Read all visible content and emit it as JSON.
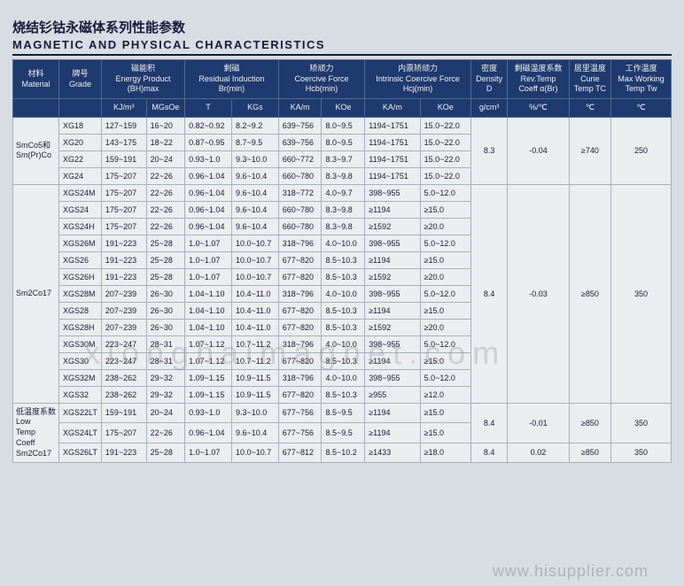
{
  "title_cn": "烧结钐钴永磁体系列性能参数",
  "title_en": "MAGNETIC AND PHYSICAL CHARACTERISTICS",
  "watermark1": "xionghaimagnet.com",
  "watermark2": "www.hisupplier.com",
  "header": {
    "h1": [
      "材料",
      "牌号",
      "磁能积",
      "剩磁",
      "矫顽力",
      "内禀矫顽力",
      "密度",
      "剩磁温度系数",
      "居里温度",
      "工作温度"
    ],
    "h1b": [
      "Material",
      "Grade",
      "Energy Product (BH)max",
      "Residual Induction Br(min)",
      "Coercive Force Hcb(min)",
      "Intrinsic Coercive Force Hcj(min)",
      "Density D",
      "Rev.Temp Coeff α(Br)",
      "Curie Temp TC",
      "Max Working Temp Tw"
    ],
    "units": [
      "KJ/m³",
      "MGsOe",
      "T",
      "KGs",
      "KA/m",
      "KOe",
      "KA/m",
      "KOe",
      "g/cm³",
      "%/℃",
      "℃",
      "℃"
    ]
  },
  "group1": {
    "material": "SmCo5和 Sm(Pr)Co",
    "density": "8.3",
    "coeff": "-0.04",
    "curie": "≥740",
    "maxtemp": "250",
    "rows": [
      [
        "XG18",
        "127~159",
        "16~20",
        "0.82~0.92",
        "8.2~9.2",
        "639~756",
        "8.0~9.5",
        "1194~1751",
        "15.0~22.0"
      ],
      [
        "XG20",
        "143~175",
        "18~22",
        "0.87~0.95",
        "8.7~9.5",
        "639~756",
        "8.0~9.5",
        "1194~1751",
        "15.0~22.0"
      ],
      [
        "XG22",
        "159~191",
        "20~24",
        "0.93~1.0",
        "9.3~10.0",
        "660~772",
        "8.3~9.7",
        "1194~1751",
        "15.0~22.0"
      ],
      [
        "XG24",
        "175~207",
        "22~26",
        "0.96~1.04",
        "9.6~10.4",
        "660~780",
        "8.3~9.8",
        "1194~1751",
        "15.0~22.0"
      ]
    ]
  },
  "group2": {
    "material": "Sm2Co17",
    "density": "8.4",
    "coeff": "-0.03",
    "curie": "≥850",
    "maxtemp": "350",
    "rows": [
      [
        "XGS24M",
        "175~207",
        "22~26",
        "0.96~1.04",
        "9.6~10.4",
        "318~772",
        "4.0~9.7",
        "398~955",
        "5.0~12.0"
      ],
      [
        "XGS24",
        "175~207",
        "22~26",
        "0.96~1.04",
        "9.6~10.4",
        "660~780",
        "8.3~9.8",
        "≥1194",
        "≥15.0"
      ],
      [
        "XGS24H",
        "175~207",
        "22~26",
        "0.96~1.04",
        "9.6~10.4",
        "660~780",
        "8.3~9.8",
        "≥1592",
        "≥20.0"
      ],
      [
        "XGS26M",
        "191~223",
        "25~28",
        "1.0~1.07",
        "10.0~10.7",
        "318~796",
        "4.0~10.0",
        "398~955",
        "5.0~12.0"
      ],
      [
        "XGS26",
        "191~223",
        "25~28",
        "1.0~1.07",
        "10.0~10.7",
        "677~820",
        "8.5~10.3",
        "≥1194",
        "≥15.0"
      ],
      [
        "XGS26H",
        "191~223",
        "25~28",
        "1.0~1.07",
        "10.0~10.7",
        "677~820",
        "8.5~10.3",
        "≥1592",
        "≥20.0"
      ],
      [
        "XGS28M",
        "207~239",
        "26~30",
        "1.04~1.10",
        "10.4~11.0",
        "318~796",
        "4.0~10.0",
        "398~955",
        "5.0~12.0"
      ],
      [
        "XGS28",
        "207~239",
        "26~30",
        "1.04~1.10",
        "10.4~11.0",
        "677~820",
        "8.5~10.3",
        "≥1194",
        "≥15.0"
      ],
      [
        "XGS28H",
        "207~239",
        "26~30",
        "1.04~1.10",
        "10.4~11.0",
        "677~820",
        "8.5~10.3",
        "≥1592",
        "≥20.0"
      ],
      [
        "XGS30M",
        "223~247",
        "28~31",
        "1.07~1.12",
        "10.7~11.2",
        "318~796",
        "4.0~10.0",
        "398~955",
        "5.0~12.0"
      ],
      [
        "XGS30",
        "223~247",
        "28~31",
        "1.07~1.12",
        "10.7~11.2",
        "677~820",
        "8.5~10.3",
        "≥1194",
        "≥15.0"
      ],
      [
        "XGS32M",
        "238~262",
        "29~32",
        "1.09~1.15",
        "10.9~11.5",
        "318~796",
        "4.0~10.0",
        "398~955",
        "5.0~12.0"
      ],
      [
        "XGS32",
        "238~262",
        "29~32",
        "1.09~1.15",
        "10.9~11.5",
        "677~820",
        "8.5~10.3",
        "≥955",
        "≥12.0"
      ]
    ]
  },
  "group3": {
    "material": "低温度系数 Low Temp Coeff Sm2Co17",
    "density": "8.4",
    "coeff": "-0.01",
    "curie": "≥850",
    "maxtemp": "350",
    "rows": [
      [
        "XGS22LT",
        "159~191",
        "20~24",
        "0.93~1.0",
        "9.3~10.0",
        "677~756",
        "8.5~9.5",
        "≥1194",
        "≥15.0"
      ],
      [
        "XGS24LT",
        "175~207",
        "22~26",
        "0.96~1.04",
        "9.6~10.4",
        "677~756",
        "8.5~9.5",
        "≥1194",
        "≥15.0"
      ],
      [
        "XGS26LT",
        "191~223",
        "25~28",
        "1.0~1.07",
        "10.0~10.7",
        "677~812",
        "8.5~10.2",
        "≥1433",
        "≥18.0"
      ]
    ],
    "extra": [
      "8.4",
      "0.02",
      "≥850",
      "350"
    ]
  }
}
